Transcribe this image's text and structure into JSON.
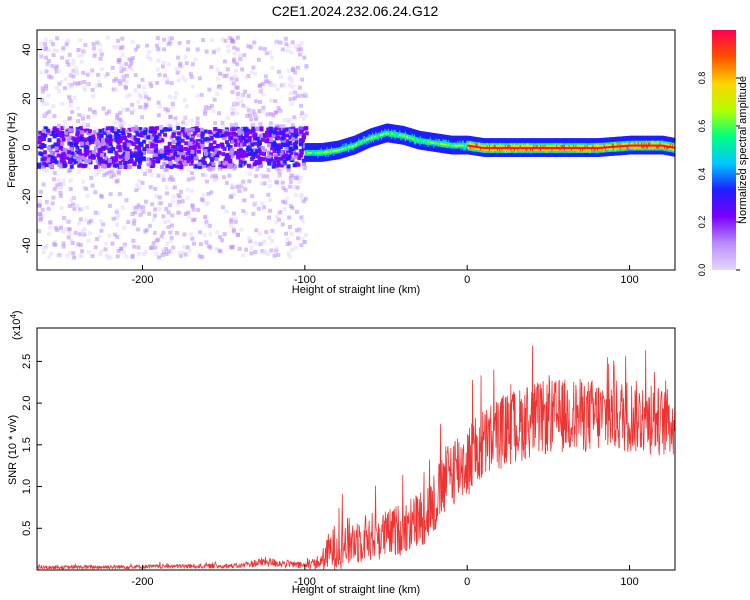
{
  "title": "C2E1.2024.232.06.24.G12",
  "chart_data": [
    {
      "type": "heatmap",
      "xlabel": "Height of straight line (km)",
      "ylabel": "Frequency (Hz)",
      "xlim": [
        -265,
        128
      ],
      "ylim": [
        -50,
        48
      ],
      "xticks": [
        -200,
        -100,
        0,
        100
      ],
      "yticks": [
        -40,
        -20,
        0,
        20,
        40
      ],
      "signal_trace": {
        "x": [
          -100,
          -90,
          -80,
          -70,
          -60,
          -50,
          -40,
          -30,
          -20,
          -10,
          0,
          10,
          20,
          40,
          60,
          80,
          100,
          110,
          120,
          128
        ],
        "freq": [
          -2,
          -2,
          -1,
          1,
          4,
          6,
          5,
          3,
          2,
          1,
          1,
          0,
          0,
          0,
          0,
          0,
          1,
          1,
          1,
          0
        ]
      },
      "colorbar": {
        "label": "Normalized spectral amplitude",
        "range": [
          0.0,
          1.0
        ],
        "ticks": [
          "0.0",
          "0.2",
          "0.4",
          "0.6",
          "0.8"
        ],
        "colors": [
          "#e6d8ff",
          "#b98cff",
          "#7a00ff",
          "#1e1eff",
          "#00c8ff",
          "#00ff80",
          "#b4ff00",
          "#ffd200",
          "#ff5000",
          "#ff0050"
        ]
      }
    },
    {
      "type": "line",
      "xlabel": "Height of straight line (km)",
      "ylabel": "SNR (10 * v/v)",
      "scale_label": "(x10",
      "scale_exp": "4",
      "scale_close": ")",
      "xlim": [
        -265,
        128
      ],
      "ylim": [
        0,
        2.9
      ],
      "xticks": [
        -200,
        -100,
        0,
        100
      ],
      "yticks": [
        "0.5",
        "1.0",
        "1.5",
        "2.0",
        "2.5"
      ],
      "series": [
        {
          "color": "#ee3333",
          "envelope": {
            "x": [
              -265,
              -140,
              -125,
              -100,
              -90,
              -85,
              -80,
              -70,
              -60,
              -50,
              -40,
              -30,
              -20,
              -15,
              -10,
              0,
              10,
              20,
              30,
              40,
              60,
              80,
              100,
              128
            ],
            "mean": [
              0.03,
              0.05,
              0.1,
              0.05,
              0.1,
              0.22,
              0.3,
              0.35,
              0.4,
              0.42,
              0.5,
              0.6,
              0.8,
              1.0,
              1.2,
              1.3,
              1.5,
              1.65,
              1.72,
              1.8,
              1.85,
              1.85,
              1.85,
              1.75
            ],
            "amp": [
              0.02,
              0.03,
              0.06,
              0.04,
              0.1,
              0.25,
              0.3,
              0.3,
              0.3,
              0.3,
              0.32,
              0.35,
              0.4,
              0.4,
              0.45,
              0.45,
              0.45,
              0.45,
              0.45,
              0.45,
              0.45,
              0.45,
              0.45,
              0.4
            ]
          }
        }
      ]
    }
  ]
}
